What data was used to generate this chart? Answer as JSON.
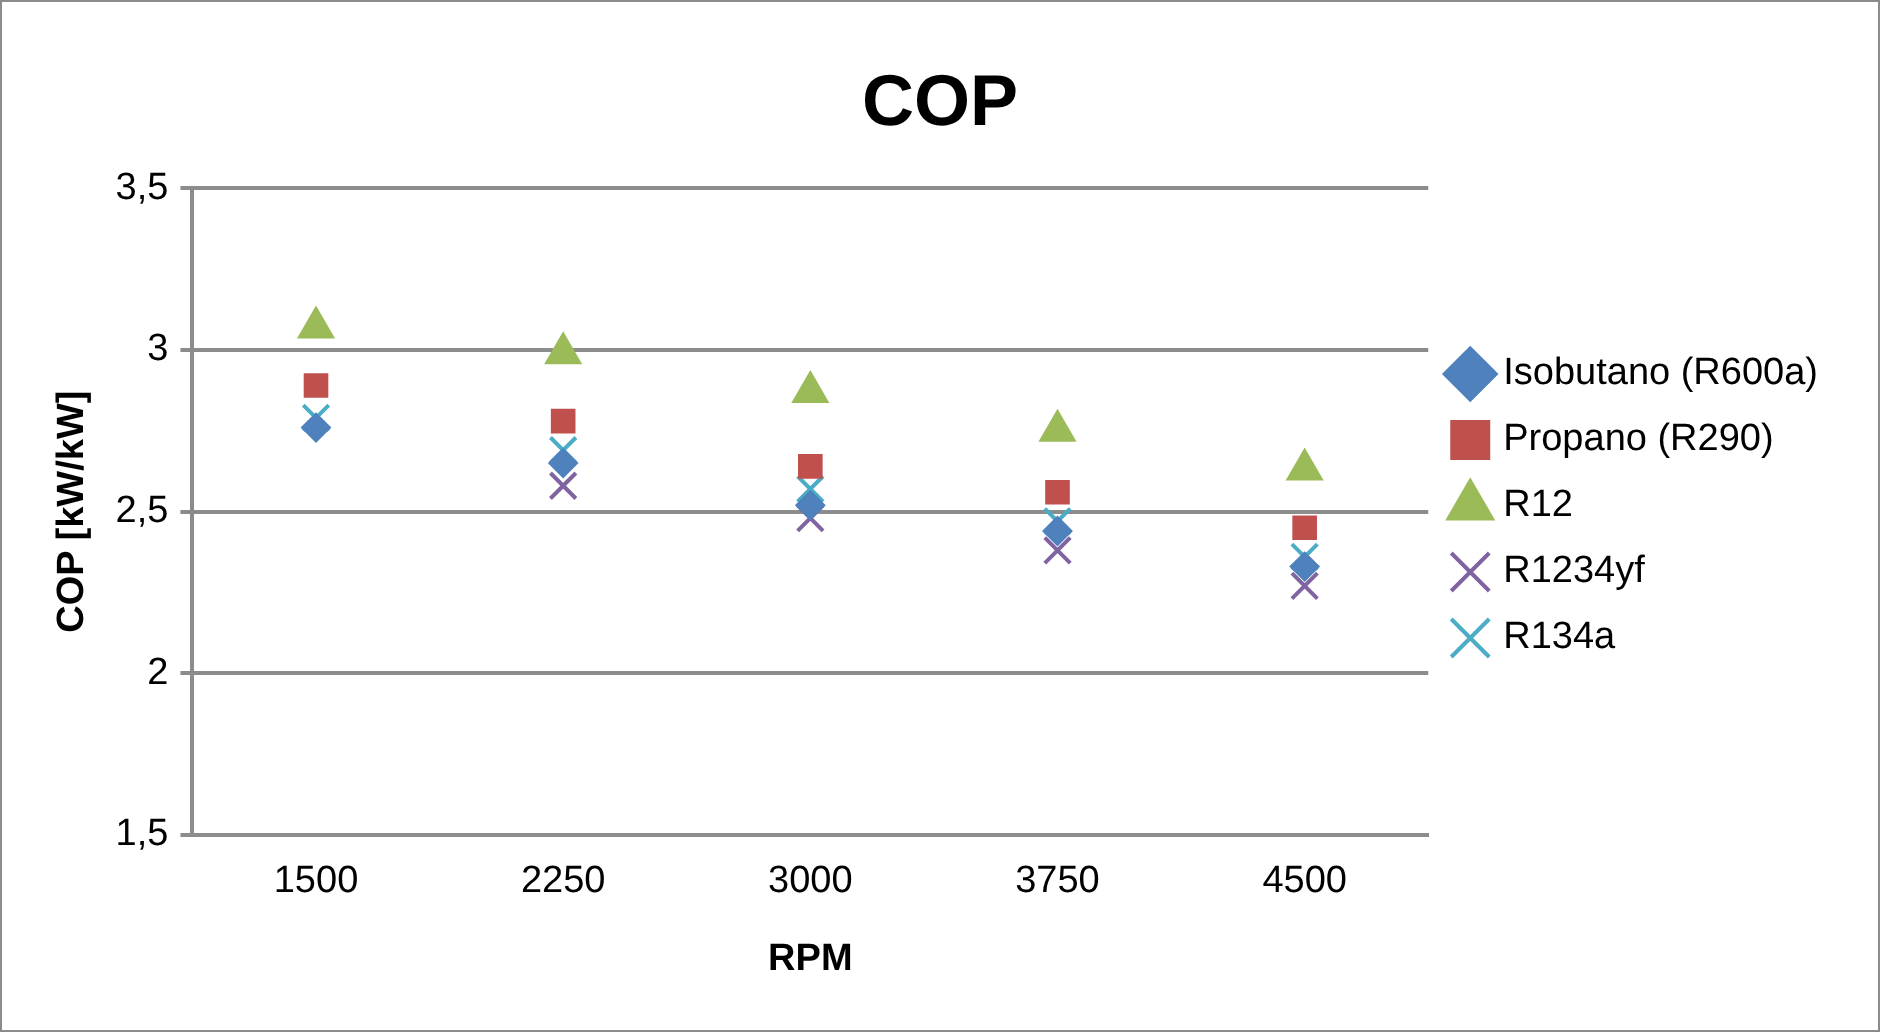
{
  "chart_data": {
    "type": "scatter",
    "title": "COP",
    "xlabel": "RPM",
    "ylabel": "COP [kW/kW]",
    "categories": [
      "1500",
      "2250",
      "3000",
      "3750",
      "4500"
    ],
    "series": [
      {
        "name": "Isobutano (R600a)",
        "color": "#4f81bd",
        "marker": "diamond",
        "values": [
          2.76,
          2.65,
          2.52,
          2.44,
          2.33
        ]
      },
      {
        "name": "Propano (R290)",
        "color": "#c0504d",
        "marker": "square",
        "values": [
          2.89,
          2.78,
          2.64,
          2.56,
          2.45
        ]
      },
      {
        "name": "R12",
        "color": "#9bbb59",
        "marker": "triangle",
        "values": [
          3.07,
          2.99,
          2.87,
          2.75,
          2.63
        ]
      },
      {
        "name": "R1234yf",
        "color": "#8064a2",
        "marker": "cross",
        "values": [
          null,
          2.58,
          2.48,
          2.38,
          2.27
        ]
      },
      {
        "name": "R134a",
        "color": "#4bacc6",
        "marker": "cross",
        "values": [
          2.79,
          2.69,
          2.57,
          2.47,
          2.36
        ]
      }
    ],
    "ylim": [
      1.5,
      3.5
    ],
    "yticks": [
      {
        "value": 1.5,
        "label": "1,5"
      },
      {
        "value": 2,
        "label": "2"
      },
      {
        "value": 2.5,
        "label": "2,5"
      },
      {
        "value": 3,
        "label": "3"
      },
      {
        "value": 3.5,
        "label": "3,5"
      }
    ],
    "grid": "y",
    "legend": "right"
  }
}
